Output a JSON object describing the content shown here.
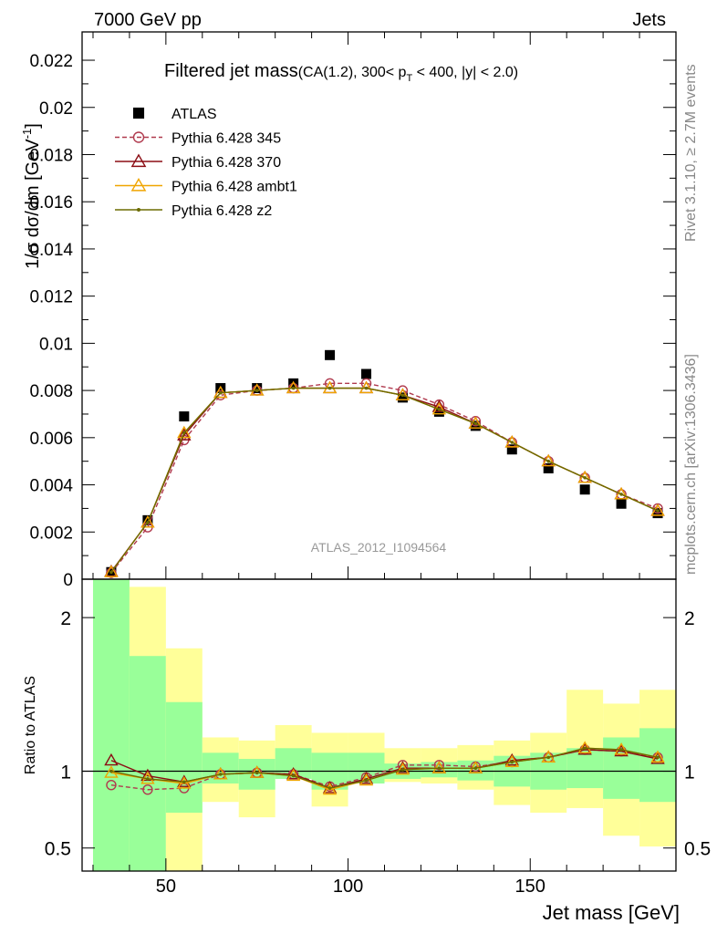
{
  "header": {
    "left": "7000 GeV pp",
    "right": "Jets"
  },
  "side_texts": {
    "rivet": "Rivet 3.1.10, ≥ 2.7M events",
    "mcplots": "mcplots.cern.ch [arXiv:1306.3436]"
  },
  "chart_data": [
    {
      "type": "line",
      "title_main": "Filtered jet mass",
      "title_sub_a": "(CA(1.2), 300< p",
      "title_sub_b": "T",
      "title_sub_c": " < 400, |y| < 2.0)",
      "ylabel_a": "1/σ dσ/dm [GeV",
      "ylabel_b": "-1",
      "ylabel_c": "]",
      "watermark": "ATLAS_2012_I1094564",
      "xlim": [
        27,
        190
      ],
      "ylim": [
        0,
        0.0232
      ],
      "yticks": [
        0,
        0.002,
        0.004,
        0.006,
        0.008,
        0.01,
        0.012,
        0.014,
        0.016,
        0.018,
        0.02,
        0.022
      ],
      "ytick_labels": [
        "0",
        "0.002",
        "0.004",
        "0.006",
        "0.008",
        "0.01",
        "0.012",
        "0.014",
        "0.016",
        "0.018",
        "0.02",
        "0.022"
      ],
      "x": [
        35,
        45,
        55,
        65,
        75,
        85,
        95,
        105,
        115,
        125,
        135,
        145,
        155,
        165,
        175,
        185
      ],
      "legend_placement": "top-left",
      "series": [
        {
          "name": "ATLAS",
          "marker": "square",
          "color": "#000000",
          "values": [
            0.0003,
            0.0025,
            0.0069,
            0.0081,
            0.0081,
            0.0083,
            0.0095,
            0.0087,
            0.0077,
            0.0071,
            0.0065,
            0.0055,
            0.0047,
            0.0038,
            0.0032,
            0.0028
          ]
        },
        {
          "name": "Pythia 6.428 345",
          "marker": "circle",
          "color": "#b03a4e",
          "dash": "5,3",
          "values": [
            0.00027,
            0.0022,
            0.0059,
            0.0078,
            0.008,
            0.0081,
            0.0083,
            0.0083,
            0.008,
            0.0074,
            0.0067,
            0.0058,
            0.005,
            0.0043,
            0.0036,
            0.003
          ]
        },
        {
          "name": "Pythia 6.428 370",
          "marker": "triangle",
          "color": "#8b0d14",
          "values": [
            0.00032,
            0.0024,
            0.0061,
            0.0079,
            0.008,
            0.0081,
            0.0081,
            0.0081,
            0.0078,
            0.0073,
            0.0066,
            0.0058,
            0.005,
            0.0043,
            0.0036,
            0.0029
          ]
        },
        {
          "name": "Pythia 6.428 ambt1",
          "marker": "triangle",
          "color": "#f0a500",
          "values": [
            0.0003,
            0.0024,
            0.0062,
            0.0079,
            0.008,
            0.0081,
            0.0081,
            0.0081,
            0.0078,
            0.0072,
            0.0066,
            0.0058,
            0.005,
            0.0043,
            0.0036,
            0.0029
          ]
        },
        {
          "name": "Pythia 6.428 z2",
          "marker": "dot",
          "color": "#6b6b00",
          "values": [
            0.0003,
            0.0024,
            0.0062,
            0.0079,
            0.008,
            0.0081,
            0.0081,
            0.0081,
            0.0078,
            0.0072,
            0.0066,
            0.0058,
            0.005,
            0.0043,
            0.0036,
            0.0029
          ]
        }
      ]
    },
    {
      "type": "line",
      "ylabel": "Ratio to ATLAS",
      "xlabel": "Jet mass [GeV]",
      "xlim": [
        27,
        190
      ],
      "ylim": [
        0.35,
        2.25
      ],
      "xticks": [
        50,
        100,
        150
      ],
      "xtick_labels": [
        "50",
        "100",
        "150"
      ],
      "yticks": [
        0.5,
        1,
        2
      ],
      "ytick_labels": [
        "0.5",
        "1",
        "2"
      ],
      "bands": [
        {
          "x0": 30,
          "x1": 40,
          "stat": [
            0.35,
            2.25
          ],
          "tot": [
            0.35,
            2.25
          ]
        },
        {
          "x0": 40,
          "x1": 50,
          "stat": [
            0.35,
            1.75
          ],
          "tot": [
            0.35,
            2.2
          ]
        },
        {
          "x0": 50,
          "x1": 60,
          "stat": [
            0.73,
            1.45
          ],
          "tot": [
            0.35,
            1.8
          ]
        },
        {
          "x0": 60,
          "x1": 70,
          "stat": [
            0.92,
            1.12
          ],
          "tot": [
            0.8,
            1.22
          ]
        },
        {
          "x0": 70,
          "x1": 80,
          "stat": [
            0.88,
            1.08
          ],
          "tot": [
            0.7,
            1.2
          ]
        },
        {
          "x0": 80,
          "x1": 90,
          "stat": [
            0.95,
            1.15
          ],
          "tot": [
            1.0,
            1.3
          ]
        },
        {
          "x0": 90,
          "x1": 100,
          "stat": [
            0.88,
            1.12
          ],
          "tot": [
            0.77,
            1.25
          ]
        },
        {
          "x0": 100,
          "x1": 110,
          "stat": [
            0.92,
            1.12
          ],
          "tot": [
            1.0,
            1.25
          ]
        },
        {
          "x0": 110,
          "x1": 120,
          "stat": [
            0.95,
            1.05
          ],
          "tot": [
            0.93,
            1.15
          ]
        },
        {
          "x0": 120,
          "x1": 130,
          "stat": [
            0.96,
            1.06
          ],
          "tot": [
            0.92,
            1.15
          ]
        },
        {
          "x0": 130,
          "x1": 140,
          "stat": [
            0.94,
            1.07
          ],
          "tot": [
            0.88,
            1.17
          ]
        },
        {
          "x0": 140,
          "x1": 150,
          "stat": [
            0.9,
            1.1
          ],
          "tot": [
            0.78,
            1.2
          ]
        },
        {
          "x0": 150,
          "x1": 160,
          "stat": [
            0.88,
            1.12
          ],
          "tot": [
            0.73,
            1.25
          ]
        },
        {
          "x0": 160,
          "x1": 170,
          "stat": [
            0.89,
            1.15
          ],
          "tot": [
            0.76,
            1.53
          ]
        },
        {
          "x0": 170,
          "x1": 180,
          "stat": [
            0.82,
            1.22
          ],
          "tot": [
            0.58,
            1.44
          ]
        },
        {
          "x0": 180,
          "x1": 190,
          "stat": [
            0.8,
            1.28
          ],
          "tot": [
            0.51,
            1.53
          ]
        }
      ],
      "series": [
        {
          "name": "Pythia 6.428 345",
          "marker": "circle",
          "color": "#b03a4e",
          "dash": "5,3",
          "values": [
            0.91,
            0.88,
            0.89,
            0.98,
            0.99,
            0.98,
            0.9,
            0.96,
            1.04,
            1.04,
            1.03,
            1.06,
            1.09,
            1.14,
            1.13,
            1.09
          ]
        },
        {
          "name": "Pythia 6.428 370",
          "marker": "triangle",
          "color": "#8b0d14",
          "values": [
            1.07,
            0.97,
            0.93,
            0.98,
            0.99,
            0.98,
            0.89,
            0.95,
            1.02,
            1.02,
            1.02,
            1.07,
            1.09,
            1.14,
            1.13,
            1.08
          ]
        },
        {
          "name": "Pythia 6.428 ambt1",
          "marker": "triangle",
          "color": "#f0a500",
          "values": [
            0.99,
            0.95,
            0.92,
            0.98,
            0.99,
            0.97,
            0.88,
            0.94,
            1.01,
            1.02,
            1.02,
            1.06,
            1.09,
            1.15,
            1.14,
            1.09
          ]
        },
        {
          "name": "Pythia 6.428 z2",
          "marker": "dot",
          "color": "#6b6b00",
          "values": [
            1.0,
            0.95,
            0.93,
            0.98,
            0.99,
            0.97,
            0.89,
            0.94,
            1.01,
            1.02,
            1.02,
            1.06,
            1.09,
            1.15,
            1.14,
            1.09
          ]
        }
      ]
    }
  ],
  "colors": {
    "stat_band": "#99ff99",
    "tot_band": "#ffff99"
  }
}
